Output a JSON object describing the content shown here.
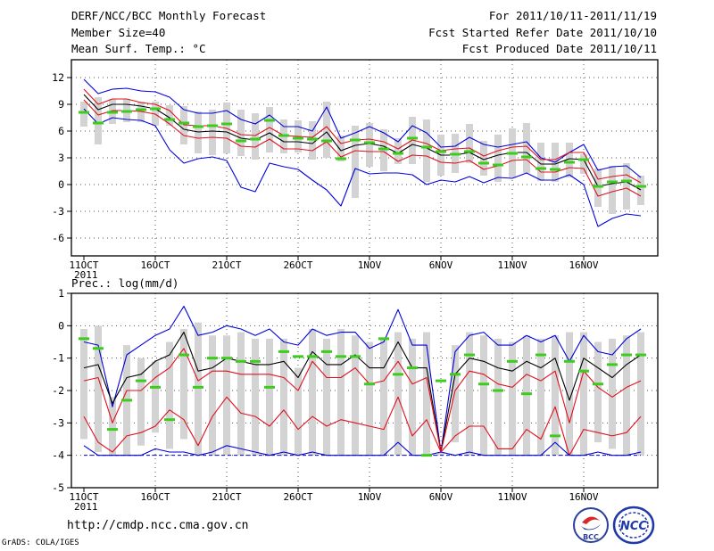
{
  "header": {
    "title": "DERF/NCC/BCC Monthly Forecast",
    "member_size": "Member Size=40",
    "variable": "Mean Surf. Temp.: °C",
    "period": "For 2011/10/11-2011/11/19",
    "fcst_started": "Fcst Started Refer Date 2011/10/10",
    "fcst_produced": "Fcst Produced Date 2011/10/11"
  },
  "footer": {
    "url": "http://cmdp.ncc.cma.gov.cn",
    "grads": "GrADS: COLA/IGES",
    "logo_bcc": "BCC",
    "logo_ncc": "NCC"
  },
  "colors": {
    "box": "#d3d3d3",
    "ensemble_mean": "#000000",
    "quantile": "#e0101e",
    "extreme": "#0000dd",
    "observed": "#3ccc1c",
    "floor": "#0000dd"
  },
  "chart_data": [
    {
      "type": "line",
      "title": "Mean Surf. Temp.: °C",
      "ylim": [
        -8,
        14
      ],
      "yticks": [
        12,
        9,
        6,
        3,
        0,
        -3,
        -6
      ],
      "ytick_labels": [
        "12",
        "9",
        "6",
        "3",
        "0",
        "-3",
        "-6"
      ],
      "xlim": [
        0,
        40
      ],
      "xticks": [
        0,
        5,
        10,
        15,
        20,
        25,
        30,
        35
      ],
      "xtick_labels": [
        "11OCT",
        "16OCT",
        "21OCT",
        "26OCT",
        "1NOV",
        "6NOV",
        "11NOV",
        "16NOV"
      ],
      "year_label": "2011",
      "x": [
        0,
        1,
        2,
        3,
        4,
        5,
        6,
        7,
        8,
        9,
        10,
        11,
        12,
        13,
        14,
        15,
        16,
        17,
        18,
        19,
        20,
        21,
        22,
        23,
        24,
        25,
        26,
        27,
        28,
        29,
        30,
        31,
        32,
        33,
        34,
        35,
        36,
        37,
        38,
        39
      ],
      "box_low": [
        6.5,
        4.5,
        6.8,
        7,
        7,
        6.6,
        6.6,
        4.5,
        3.5,
        3.3,
        3.5,
        3.2,
        2.8,
        3.6,
        3.5,
        3.6,
        2.8,
        3,
        2.6,
        -1.5,
        2,
        1.5,
        2.3,
        2.3,
        0.3,
        1,
        1.3,
        2.4,
        1,
        0.3,
        0.8,
        1.3,
        0.4,
        0.3,
        0.8,
        1.2,
        -2.5,
        -3.3,
        -2.8,
        -2.3
      ],
      "box_high": [
        9.3,
        9.8,
        9.6,
        9.6,
        9.3,
        9.3,
        8.9,
        8.8,
        8.2,
        8.4,
        9.2,
        8.4,
        8,
        8.7,
        7.3,
        7.2,
        7.1,
        9.3,
        5.5,
        6.6,
        6.9,
        6.2,
        5.2,
        7.6,
        7.3,
        5.6,
        5.7,
        6.8,
        4.9,
        5.6,
        6.3,
        6.9,
        4.7,
        4.7,
        4.7,
        3.4,
        1.8,
        2.1,
        2.4,
        1
      ],
      "series": [
        {
          "name": "max",
          "role": "extreme",
          "values": [
            11.8,
            10.2,
            10.7,
            10.8,
            10.5,
            10.4,
            9.8,
            8.4,
            8,
            8,
            8.3,
            7.3,
            6.8,
            7.8,
            6.5,
            6.5,
            6,
            8.7,
            5.2,
            5.8,
            6.5,
            5.8,
            4.8,
            6.6,
            5.8,
            4.2,
            4.3,
            5.3,
            4.5,
            4.2,
            4.5,
            4.8,
            3,
            2.5,
            3.6,
            4.5,
            1.6,
            2,
            2.1,
            0.8
          ]
        },
        {
          "name": "80pct",
          "role": "quantile",
          "values": [
            10.7,
            9,
            9.6,
            9.6,
            9.2,
            9,
            8.3,
            6.7,
            6.6,
            6.6,
            6.3,
            5.6,
            5.5,
            6.4,
            5.5,
            5.4,
            5.3,
            6.5,
            4.6,
            5,
            5.1,
            4.8,
            4,
            5,
            4.6,
            3.8,
            4,
            4.1,
            3.2,
            3.8,
            4.2,
            4.3,
            2.8,
            2.8,
            3.6,
            3.6,
            0.6,
            0.9,
            1.1,
            0.2
          ]
        },
        {
          "name": "mean",
          "role": "mean",
          "values": [
            10.1,
            8.4,
            9,
            9,
            8.8,
            8.5,
            7.5,
            6.2,
            5.9,
            6,
            5.9,
            5.2,
            5,
            5.8,
            4.8,
            4.8,
            4.6,
            5.9,
            3.8,
            4.4,
            4.6,
            4.3,
            3.5,
            4.5,
            4.1,
            3.3,
            3.3,
            3.6,
            2.8,
            3.3,
            3.6,
            3.6,
            2.3,
            2.3,
            2.9,
            2.8,
            -0.2,
            0.1,
            0.3,
            -0.6
          ]
        },
        {
          "name": "20pct",
          "role": "quantile",
          "values": [
            9.5,
            7.8,
            8.3,
            8.3,
            8.2,
            7.9,
            6.8,
            5.5,
            5.2,
            5.3,
            5.2,
            4.3,
            4.2,
            5.1,
            4,
            4,
            3.8,
            4.8,
            3.1,
            3.8,
            3.7,
            3.7,
            2.6,
            3.3,
            3.2,
            2.5,
            2.4,
            2.7,
            1.7,
            2.1,
            2.7,
            2.8,
            1.4,
            1.4,
            1.9,
            1.8,
            -1.3,
            -0.8,
            -0.4,
            -1.3
          ]
        },
        {
          "name": "min",
          "role": "extreme",
          "values": [
            8.5,
            6.8,
            7.5,
            7.3,
            7.2,
            6.6,
            3.9,
            2.4,
            2.9,
            3.1,
            2.7,
            -0.3,
            -0.8,
            2.4,
            2,
            1.7,
            0.5,
            -0.6,
            -2.4,
            1.8,
            1.2,
            1.3,
            1.3,
            1.1,
            0,
            0.5,
            0.3,
            0.9,
            0.2,
            0.8,
            0.7,
            1.3,
            0.5,
            0.5,
            1.1,
            0,
            -4.7,
            -3.8,
            -3.3,
            -3.5
          ]
        }
      ],
      "observed": [
        8.1,
        6.9,
        8.1,
        8.2,
        8.4,
        8.5,
        7.3,
        6.9,
        6.5,
        6.6,
        6.8,
        4.9,
        5.1,
        7.2,
        5.5,
        5.2,
        5.1,
        4.9,
        2.9,
        5,
        4.7,
        4,
        3.5,
        5.2,
        4.2,
        3.7,
        3.4,
        3.7,
        2.4,
        2.2,
        3.5,
        3.1,
        1.8,
        1.7,
        2.5,
        2.8,
        -0.2,
        0.3,
        0.4,
        -0.2
      ]
    },
    {
      "type": "line",
      "title": "Prec.: log(mm/d)",
      "ylim": [
        -5,
        1
      ],
      "yticks": [
        1,
        0,
        -1,
        -2,
        -3,
        -4,
        -5
      ],
      "ytick_labels": [
        "1",
        "0",
        "-1",
        "-2",
        "-3",
        "-4",
        "-5"
      ],
      "xlim": [
        0,
        40
      ],
      "xticks": [
        0,
        5,
        10,
        15,
        20,
        25,
        30,
        35
      ],
      "xtick_labels": [
        "11OCT",
        "16OCT",
        "21OCT",
        "26OCT",
        "1NOV",
        "6NOV",
        "11NOV",
        "16NOV"
      ],
      "year_label": "2011",
      "floor_value": -4,
      "x": [
        0,
        1,
        2,
        3,
        4,
        5,
        6,
        7,
        8,
        9,
        10,
        11,
        12,
        13,
        14,
        15,
        16,
        17,
        18,
        19,
        20,
        21,
        22,
        23,
        24,
        25,
        26,
        27,
        28,
        29,
        30,
        31,
        32,
        33,
        34,
        35,
        36,
        37,
        38,
        39
      ],
      "box_low": [
        -3.5,
        -3.9,
        -4,
        -4,
        -3.7,
        -3.3,
        -3.8,
        -3.5,
        -4,
        -4,
        -4,
        -4,
        -4,
        -4,
        -4,
        -4,
        -4,
        -4,
        -4,
        -4,
        -4,
        -4,
        -4,
        -4,
        -4,
        -4,
        -3.6,
        -4,
        -4,
        -4,
        -4,
        -4,
        -4,
        -4,
        -4,
        -4,
        -3.6,
        -3.8,
        -4,
        -4
      ],
      "box_high": [
        -0.1,
        0,
        -2.2,
        -0.6,
        -1,
        -1.1,
        -0.5,
        -0.1,
        0.1,
        -0.3,
        -0.3,
        -0.2,
        -0.4,
        -0.4,
        -0.4,
        -1.3,
        -0.1,
        -0.4,
        -0.1,
        -0.3,
        -0.5,
        -0.4,
        -0.2,
        -0.4,
        -0.2,
        -3.9,
        -0.6,
        -0.2,
        -0.3,
        -0.4,
        -0.5,
        -0.3,
        -0.4,
        -0.3,
        -0.2,
        -0.2,
        -0.5,
        -0.4,
        -0.3,
        -0.2
      ],
      "series": [
        {
          "name": "max",
          "role": "extreme",
          "values": [
            -0.5,
            -0.6,
            -2.5,
            -0.9,
            -0.6,
            -0.3,
            -0.1,
            0.6,
            -0.3,
            -0.2,
            0,
            -0.1,
            -0.3,
            -0.1,
            -0.5,
            -0.6,
            -0.1,
            -0.3,
            -0.2,
            -0.2,
            -0.7,
            -0.5,
            0.5,
            -0.6,
            -0.6,
            -3.9,
            -0.8,
            -0.3,
            -0.2,
            -0.6,
            -0.6,
            -0.3,
            -0.5,
            -0.3,
            -1.1,
            -0.3,
            -0.8,
            -0.9,
            -0.4,
            -0.1
          ]
        },
        {
          "name": "mean",
          "role": "mean",
          "values": [
            -1.3,
            -1.2,
            -2.4,
            -1.6,
            -1.5,
            -1.1,
            -0.9,
            -0.2,
            -1.4,
            -1.3,
            -1,
            -1.1,
            -1.2,
            -1.2,
            -1.1,
            -1.6,
            -0.8,
            -1.2,
            -1.2,
            -0.9,
            -1.3,
            -1.3,
            -0.5,
            -1.3,
            -1.3,
            -3.9,
            -1.5,
            -1,
            -1.1,
            -1.3,
            -1.4,
            -1.1,
            -1.3,
            -1,
            -2.3,
            -1,
            -1.3,
            -1.6,
            -1.2,
            -0.9
          ]
        },
        {
          "name": "80pct",
          "role": "quantile",
          "values": [
            -1.7,
            -1.6,
            -3,
            -2,
            -2,
            -1.6,
            -1.3,
            -0.7,
            -1.7,
            -1.4,
            -1.4,
            -1.5,
            -1.5,
            -1.5,
            -1.6,
            -2,
            -1.1,
            -1.6,
            -1.6,
            -1.3,
            -1.8,
            -1.7,
            -1.1,
            -1.8,
            -1.6,
            -3.9,
            -2,
            -1.4,
            -1.5,
            -1.8,
            -1.9,
            -1.5,
            -1.7,
            -1.4,
            -3,
            -1.4,
            -1.9,
            -2.2,
            -1.9,
            -1.7
          ]
        },
        {
          "name": "20pct",
          "role": "quantile",
          "values": [
            -2.8,
            -3.6,
            -3.9,
            -3.4,
            -3.3,
            -3.1,
            -2.6,
            -2.9,
            -3.7,
            -2.8,
            -2.2,
            -2.7,
            -2.8,
            -3.1,
            -2.6,
            -3.2,
            -2.8,
            -3.1,
            -2.9,
            -3,
            -3.1,
            -3.2,
            -2.2,
            -3.4,
            -2.9,
            -3.9,
            -3.4,
            -3.1,
            -3.1,
            -3.8,
            -3.8,
            -3.2,
            -3.5,
            -2.5,
            -4,
            -3.2,
            -3.3,
            -3.4,
            -3.3,
            -2.8
          ]
        },
        {
          "name": "min",
          "role": "extreme",
          "values": [
            -3.7,
            -4,
            -4,
            -4,
            -4,
            -3.8,
            -3.9,
            -3.9,
            -4,
            -3.9,
            -3.7,
            -3.8,
            -3.9,
            -4,
            -3.9,
            -4,
            -3.9,
            -4,
            -4,
            -4,
            -4,
            -4,
            -3.6,
            -4,
            -4,
            -3.9,
            -4,
            -3.9,
            -4,
            -4,
            -4,
            -4,
            -4,
            -3.6,
            -4,
            -4,
            -3.9,
            -4,
            -4,
            -3.9
          ]
        }
      ],
      "observed": [
        -0.4,
        -0.7,
        -3.2,
        -2.3,
        -1.7,
        -1.9,
        -2.9,
        -0.9,
        -1.9,
        -1,
        -1,
        -1.1,
        -1.1,
        -1.9,
        -0.8,
        -0.95,
        -0.95,
        -0.8,
        -0.95,
        -0.95,
        -1.8,
        -0.4,
        -1.5,
        -1.3,
        -4,
        -1.7,
        -1.5,
        -0.9,
        -1.8,
        -2,
        -1.1,
        -2.1,
        -0.9,
        -3.4,
        -1.1,
        -1.4,
        -1.8,
        -1.2,
        -0.9,
        -0.9
      ]
    }
  ]
}
